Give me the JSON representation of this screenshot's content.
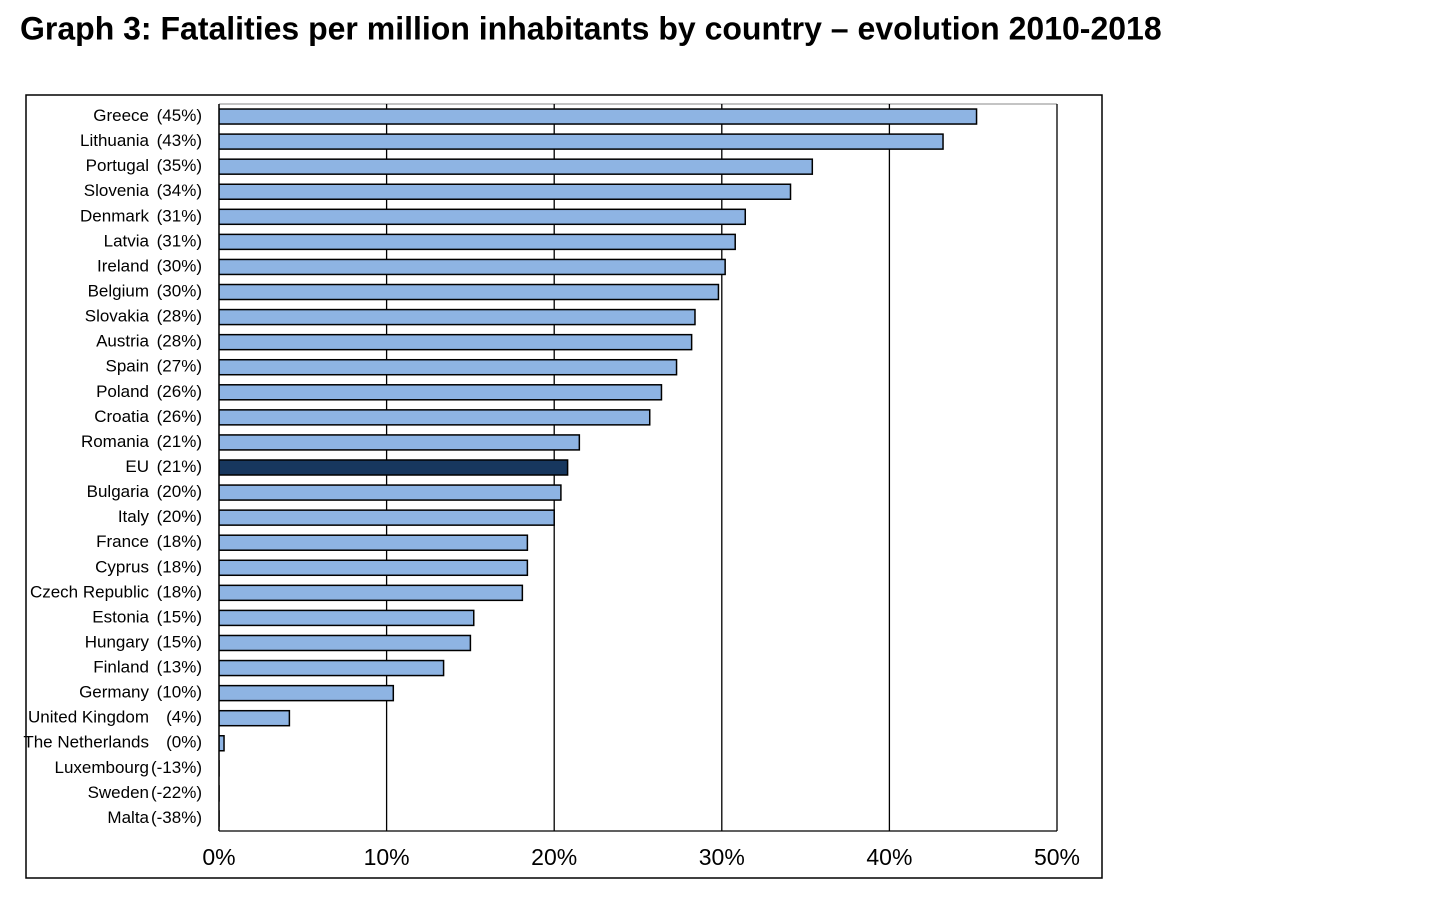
{
  "chart_data": {
    "type": "hbar",
    "title": "Graph 3: Fatalities per million inhabitants by country – evolution 2010-2018",
    "categories": [
      "Greece",
      "Lithuania",
      "Portugal",
      "Slovenia",
      "Denmark",
      "Latvia",
      "Ireland",
      "Belgium",
      "Slovakia",
      "Austria",
      "Spain",
      "Poland",
      "Croatia",
      "Romania",
      "EU",
      "Bulgaria",
      "Italy",
      "France",
      "Cyprus",
      "Czech Republic",
      "Estonia",
      "Hungary",
      "Finland",
      "Germany",
      "United Kingdom",
      "The Netherlands",
      "Luxembourg",
      "Sweden",
      "Malta"
    ],
    "values": [
      45.2,
      43.2,
      35.4,
      34.1,
      31.4,
      30.8,
      30.2,
      29.8,
      28.4,
      28.2,
      27.3,
      26.4,
      25.7,
      21.5,
      20.8,
      20.4,
      20.0,
      18.4,
      18.4,
      18.1,
      15.2,
      15.0,
      13.4,
      10.4,
      4.2,
      0.3,
      -13,
      -22,
      -38
    ],
    "value_labels": [
      "(45%)",
      "(43%)",
      "(35%)",
      "(34%)",
      "(31%)",
      "(31%)",
      "(30%)",
      "(30%)",
      "(28%)",
      "(28%)",
      "(27%)",
      "(26%)",
      "(26%)",
      "(21%)",
      "(21%)",
      "(20%)",
      "(20%)",
      "(18%)",
      "(18%)",
      "(18%)",
      "(15%)",
      "(15%)",
      "(13%)",
      "(10%)",
      "(4%)",
      "(0%)",
      "(-13%)",
      "(-22%)",
      "(-38%)"
    ],
    "colors": [
      "#8eb4e3",
      "#8eb4e3",
      "#8eb4e3",
      "#8eb4e3",
      "#8eb4e3",
      "#8eb4e3",
      "#8eb4e3",
      "#8eb4e3",
      "#8eb4e3",
      "#8eb4e3",
      "#8eb4e3",
      "#8eb4e3",
      "#8eb4e3",
      "#8eb4e3",
      "#17375e",
      "#8eb4e3",
      "#8eb4e3",
      "#8eb4e3",
      "#8eb4e3",
      "#8eb4e3",
      "#8eb4e3",
      "#8eb4e3",
      "#8eb4e3",
      "#8eb4e3",
      "#8eb4e3",
      "#8eb4e3",
      "#8eb4e3",
      "#8eb4e3",
      "#8eb4e3"
    ],
    "xlim": [
      0,
      50
    ],
    "xticks": [
      {
        "value": 0,
        "label": "0%"
      },
      {
        "value": 10,
        "label": "10%"
      },
      {
        "value": 20,
        "label": "20%"
      },
      {
        "value": 30,
        "label": "30%"
      },
      {
        "value": 40,
        "label": "40%"
      },
      {
        "value": 50,
        "label": "50%"
      }
    ],
    "grid": true
  }
}
